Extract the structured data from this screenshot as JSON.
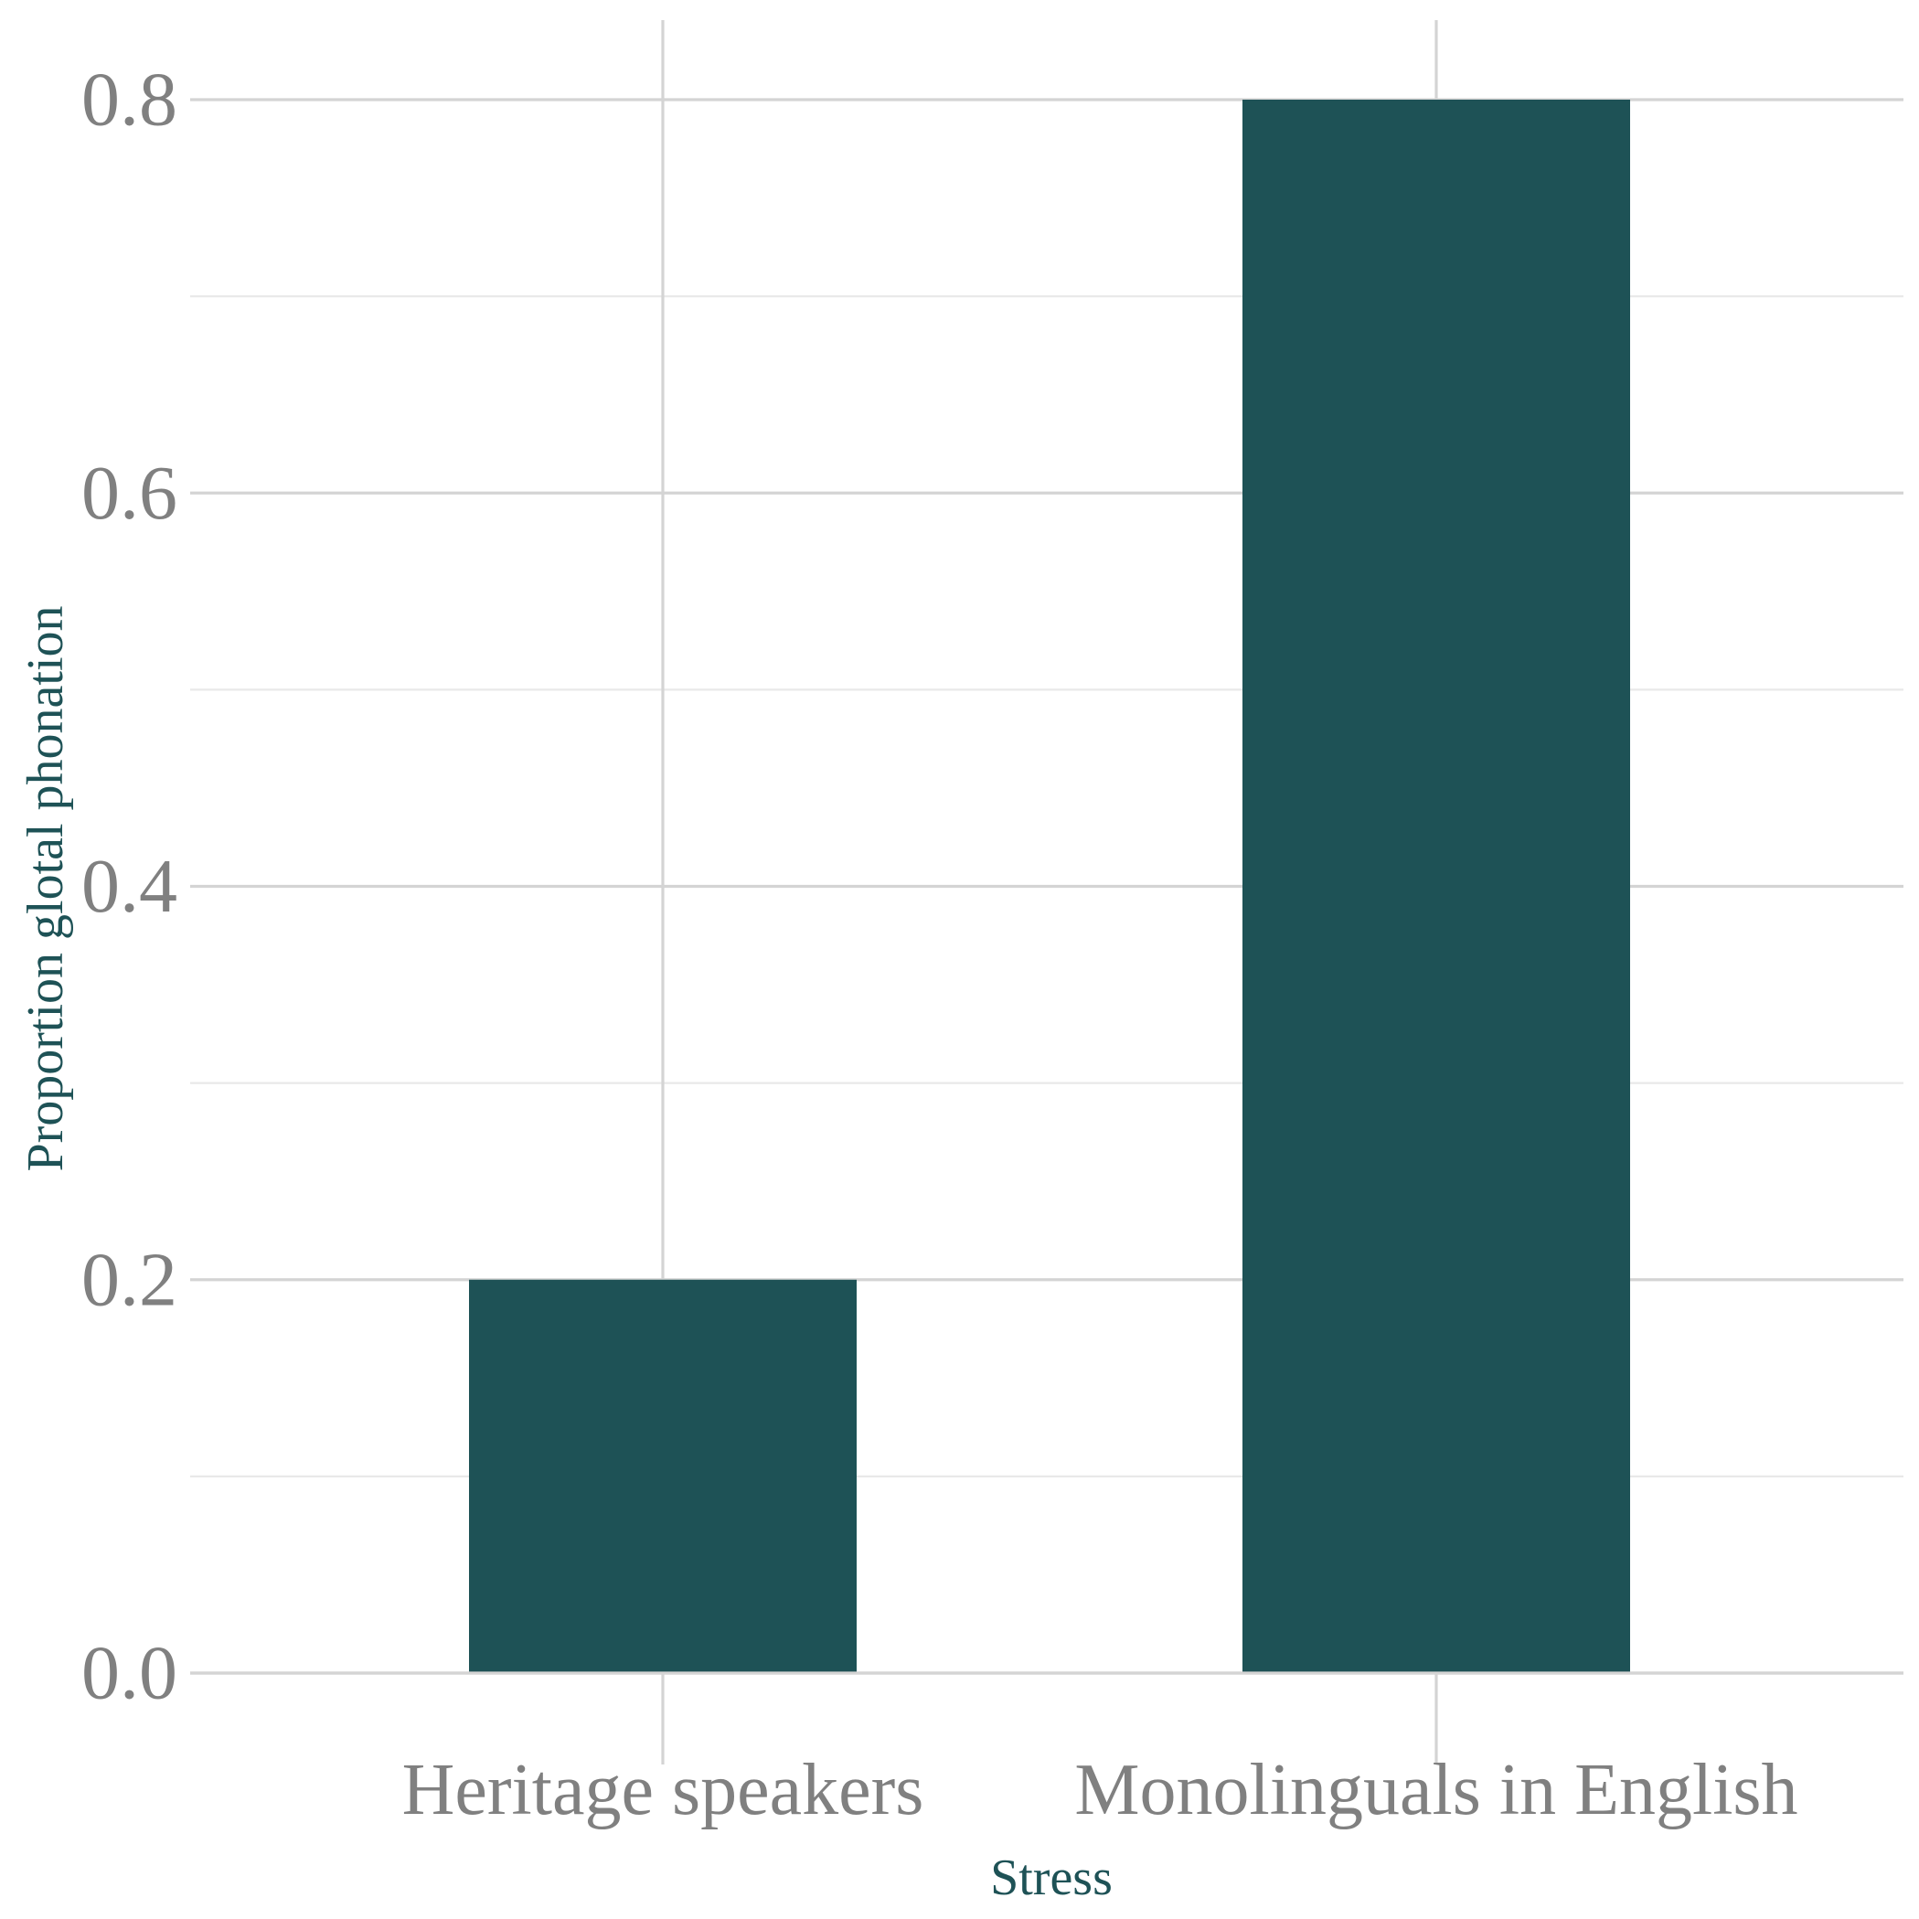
{
  "chart_data": {
    "type": "bar",
    "categories": [
      "Heritage speakers",
      "Monolinguals in English"
    ],
    "values": [
      0.2,
      0.8
    ],
    "xlabel": "Stress",
    "ylabel": "Proportion glotal phonation",
    "ylim": [
      0,
      0.8
    ],
    "yticks": [
      "0.0",
      "0.2",
      "0.4",
      "0.6",
      "0.8"
    ],
    "grid": true,
    "bar_color": "#1e5256",
    "tick_label_color": "#808080",
    "axis_title_color": "#1e5256"
  }
}
